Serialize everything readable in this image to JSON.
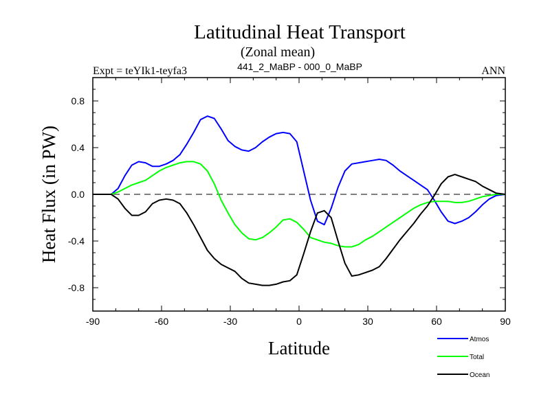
{
  "chart_data": {
    "type": "line",
    "title": "Latitudinal Heat Transport",
    "subtitle": "(Zonal mean)",
    "left_label": "Expt = teYIk1-teyfa3",
    "center_label": "441_2_MaBP - 000_0_MaBP",
    "right_label": "ANN",
    "xlabel": "Latitude",
    "ylabel": "Heat Flux (in PW)",
    "xlim": [
      -90,
      90
    ],
    "ylim": [
      -1.0,
      1.0
    ],
    "xticks": [
      -90,
      -60,
      -30,
      0,
      30,
      60,
      90
    ],
    "xtick_labels": [
      "-90",
      "-60",
      "-30",
      "0",
      "30",
      "60",
      "90"
    ],
    "yticks": [
      -0.8,
      -0.4,
      0.0,
      0.4,
      0.8
    ],
    "ytick_labels": [
      "-0.8",
      "-0.4",
      "0.0",
      "0.4",
      "0.8"
    ],
    "zero_line": true,
    "series": [
      {
        "name": "Atmos",
        "color": "#0000ff",
        "x": [
          -90,
          -85,
          -82,
          -79,
          -76,
          -73,
          -70,
          -67,
          -64,
          -61,
          -58,
          -55,
          -52,
          -49,
          -46,
          -43,
          -40,
          -37,
          -34,
          -31,
          -28,
          -25,
          -22,
          -19,
          -16,
          -13,
          -10,
          -7,
          -4,
          -1,
          2,
          5,
          8,
          11,
          14,
          17,
          20,
          23,
          26,
          29,
          32,
          35,
          38,
          41,
          44,
          47,
          50,
          53,
          56,
          59,
          62,
          65,
          68,
          71,
          74,
          77,
          80,
          83,
          86,
          90
        ],
        "y": [
          0.0,
          0.0,
          0.0,
          0.05,
          0.16,
          0.25,
          0.28,
          0.27,
          0.24,
          0.24,
          0.26,
          0.29,
          0.34,
          0.43,
          0.53,
          0.64,
          0.67,
          0.65,
          0.56,
          0.46,
          0.41,
          0.38,
          0.37,
          0.4,
          0.45,
          0.49,
          0.52,
          0.53,
          0.52,
          0.45,
          0.2,
          -0.05,
          -0.23,
          -0.26,
          -0.12,
          0.06,
          0.2,
          0.26,
          0.27,
          0.28,
          0.29,
          0.3,
          0.29,
          0.25,
          0.2,
          0.16,
          0.12,
          0.08,
          0.04,
          -0.05,
          -0.15,
          -0.23,
          -0.25,
          -0.23,
          -0.2,
          -0.15,
          -0.09,
          -0.04,
          -0.01,
          0.0
        ]
      },
      {
        "name": "Total",
        "color": "#00ff00",
        "x": [
          -90,
          -85,
          -82,
          -79,
          -76,
          -73,
          -70,
          -67,
          -64,
          -61,
          -58,
          -55,
          -52,
          -49,
          -46,
          -43,
          -40,
          -37,
          -34,
          -31,
          -28,
          -25,
          -22,
          -19,
          -16,
          -13,
          -10,
          -7,
          -4,
          -1,
          2,
          5,
          8,
          11,
          14,
          17,
          20,
          23,
          26,
          29,
          32,
          35,
          38,
          41,
          44,
          47,
          50,
          53,
          56,
          59,
          62,
          65,
          68,
          71,
          74,
          77,
          80,
          83,
          86,
          90
        ],
        "y": [
          0.0,
          0.0,
          0.0,
          0.02,
          0.05,
          0.08,
          0.1,
          0.12,
          0.16,
          0.2,
          0.23,
          0.25,
          0.27,
          0.28,
          0.28,
          0.26,
          0.2,
          0.09,
          -0.05,
          -0.16,
          -0.26,
          -0.33,
          -0.38,
          -0.39,
          -0.37,
          -0.33,
          -0.28,
          -0.22,
          -0.21,
          -0.24,
          -0.3,
          -0.37,
          -0.39,
          -0.41,
          -0.42,
          -0.44,
          -0.45,
          -0.45,
          -0.43,
          -0.39,
          -0.36,
          -0.32,
          -0.28,
          -0.24,
          -0.2,
          -0.16,
          -0.12,
          -0.09,
          -0.07,
          -0.06,
          -0.06,
          -0.06,
          -0.07,
          -0.07,
          -0.06,
          -0.04,
          -0.02,
          -0.01,
          0.0,
          0.0
        ]
      },
      {
        "name": "Ocean",
        "color": "#000000",
        "x": [
          -90,
          -85,
          -82,
          -79,
          -76,
          -73,
          -70,
          -67,
          -64,
          -61,
          -58,
          -55,
          -52,
          -49,
          -46,
          -43,
          -40,
          -37,
          -34,
          -31,
          -28,
          -25,
          -22,
          -19,
          -16,
          -13,
          -10,
          -7,
          -4,
          -1,
          2,
          5,
          8,
          11,
          14,
          17,
          20,
          23,
          26,
          29,
          32,
          35,
          38,
          41,
          44,
          47,
          50,
          53,
          56,
          59,
          62,
          65,
          68,
          71,
          74,
          77,
          80,
          83,
          86,
          90
        ],
        "y": [
          0.0,
          0.0,
          0.0,
          -0.04,
          -0.12,
          -0.18,
          -0.18,
          -0.15,
          -0.08,
          -0.05,
          -0.04,
          -0.05,
          -0.08,
          -0.16,
          -0.26,
          -0.37,
          -0.48,
          -0.55,
          -0.6,
          -0.63,
          -0.66,
          -0.72,
          -0.76,
          -0.77,
          -0.78,
          -0.78,
          -0.77,
          -0.75,
          -0.74,
          -0.69,
          -0.51,
          -0.32,
          -0.16,
          -0.14,
          -0.2,
          -0.4,
          -0.59,
          -0.7,
          -0.69,
          -0.67,
          -0.65,
          -0.62,
          -0.55,
          -0.47,
          -0.39,
          -0.32,
          -0.25,
          -0.17,
          -0.1,
          -0.01,
          0.09,
          0.15,
          0.17,
          0.15,
          0.13,
          0.11,
          0.07,
          0.04,
          0.01,
          0.0
        ]
      }
    ],
    "legend": {
      "placement": "bottom-right",
      "entries": [
        "Atmos",
        "Total",
        "Ocean"
      ]
    }
  }
}
